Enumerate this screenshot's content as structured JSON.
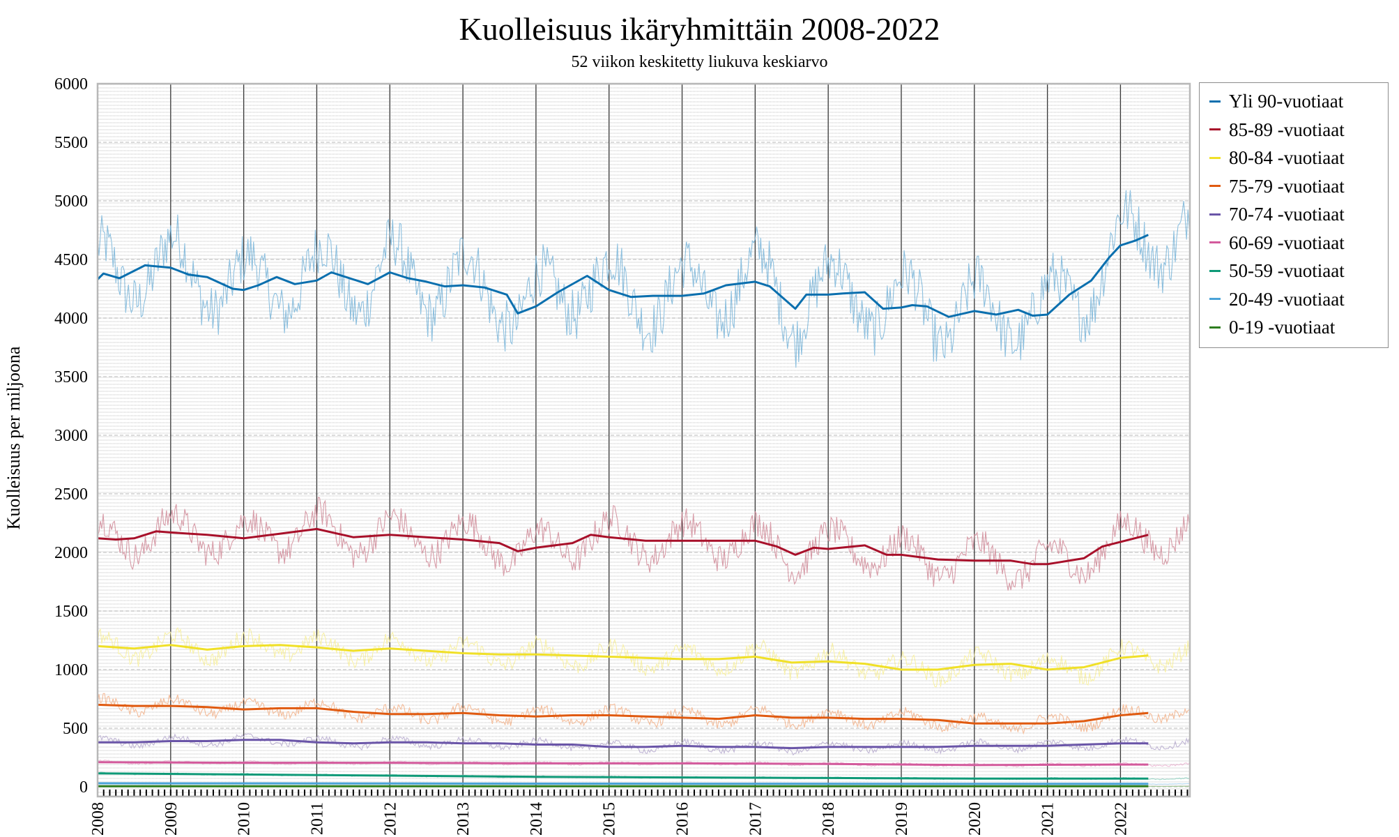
{
  "chart_data": {
    "type": "line",
    "title": "Kuolleisuus ikäryhmittäin 2008-2022",
    "subtitle": "52 viikon keskitetty liukuva keskiarvo",
    "ylabel": "Kuolleisuus per miljoona",
    "xlabel": "",
    "ylim": [
      0,
      6000
    ],
    "xlim": [
      2008.0,
      2022.95
    ],
    "yticks": [
      0,
      500,
      1000,
      1500,
      2000,
      2500,
      3000,
      3500,
      4000,
      4500,
      5000,
      5500,
      6000
    ],
    "xticks": [
      "2008",
      "2009",
      "2010",
      "2011",
      "2012",
      "2013",
      "2014",
      "2015",
      "2016",
      "2017",
      "2018",
      "2019",
      "2020",
      "2021",
      "2022"
    ],
    "grid": true,
    "legend_position": "right-outside-top",
    "series": [
      {
        "name": "Yli 90-vuotiaat",
        "color": "#0a6fae",
        "raw_color": "#78b4d8",
        "raw_amp": 380,
        "x": [
          2008.0,
          2008.08,
          2008.3,
          2008.65,
          2009.0,
          2009.25,
          2009.5,
          2009.85,
          2010.0,
          2010.2,
          2010.45,
          2010.7,
          2011.0,
          2011.2,
          2011.45,
          2011.7,
          2012.0,
          2012.25,
          2012.5,
          2012.75,
          2013.0,
          2013.3,
          2013.6,
          2013.75,
          2014.0,
          2014.3,
          2014.7,
          2015.0,
          2015.3,
          2015.6,
          2016.0,
          2016.3,
          2016.6,
          2017.0,
          2017.2,
          2017.55,
          2017.7,
          2018.0,
          2018.2,
          2018.5,
          2018.75,
          2019.0,
          2019.15,
          2019.35,
          2019.65,
          2020.0,
          2020.3,
          2020.6,
          2020.8,
          2021.0,
          2021.3,
          2021.6,
          2021.85,
          2022.0,
          2022.2,
          2022.38
        ],
        "y": [
          4330,
          4380,
          4340,
          4450,
          4430,
          4370,
          4350,
          4250,
          4240,
          4280,
          4350,
          4290,
          4320,
          4390,
          4340,
          4290,
          4390,
          4340,
          4310,
          4270,
          4280,
          4260,
          4200,
          4040,
          4100,
          4220,
          4360,
          4240,
          4180,
          4190,
          4190,
          4210,
          4280,
          4310,
          4270,
          4080,
          4200,
          4200,
          4210,
          4220,
          4080,
          4090,
          4110,
          4100,
          4010,
          4060,
          4030,
          4070,
          4020,
          4030,
          4200,
          4320,
          4520,
          4620,
          4660,
          4710
        ]
      },
      {
        "name": "85-89 -vuotiaat",
        "color": "#a8102a",
        "raw_color": "#d08a98",
        "raw_amp": 210,
        "x": [
          2008.0,
          2008.25,
          2008.5,
          2008.8,
          2009.0,
          2009.5,
          2010.0,
          2010.5,
          2011.0,
          2011.5,
          2012.0,
          2012.5,
          2013.0,
          2013.5,
          2013.75,
          2014.0,
          2014.5,
          2014.75,
          2015.0,
          2015.5,
          2016.0,
          2016.5,
          2017.0,
          2017.3,
          2017.55,
          2017.8,
          2018.0,
          2018.5,
          2018.8,
          2019.0,
          2019.5,
          2020.0,
          2020.5,
          2020.8,
          2021.0,
          2021.5,
          2021.75,
          2022.0,
          2022.38
        ],
        "y": [
          2120,
          2110,
          2120,
          2180,
          2170,
          2150,
          2120,
          2160,
          2200,
          2130,
          2150,
          2130,
          2110,
          2080,
          2010,
          2040,
          2080,
          2150,
          2130,
          2100,
          2100,
          2100,
          2100,
          2050,
          1980,
          2040,
          2030,
          2060,
          1980,
          1980,
          1940,
          1930,
          1930,
          1900,
          1900,
          1950,
          2050,
          2090,
          2150
        ]
      },
      {
        "name": "80-84 -vuotiaat",
        "color": "#f0e028",
        "raw_color": "#f7ef9a",
        "raw_amp": 120,
        "x": [
          2008.0,
          2008.5,
          2009.0,
          2009.5,
          2010.0,
          2010.5,
          2011.0,
          2011.5,
          2012.0,
          2012.5,
          2013.0,
          2013.5,
          2014.0,
          2014.5,
          2015.0,
          2015.5,
          2016.0,
          2016.5,
          2017.0,
          2017.5,
          2018.0,
          2018.5,
          2019.0,
          2019.5,
          2020.0,
          2020.5,
          2021.0,
          2021.5,
          2021.75,
          2022.0,
          2022.38
        ],
        "y": [
          1200,
          1180,
          1210,
          1170,
          1200,
          1210,
          1190,
          1160,
          1180,
          1160,
          1140,
          1130,
          1130,
          1120,
          1110,
          1100,
          1090,
          1090,
          1110,
          1060,
          1070,
          1050,
          1000,
          1000,
          1040,
          1050,
          1000,
          1020,
          1060,
          1100,
          1120
        ]
      },
      {
        "name": "75-79 -vuotiaat",
        "color": "#e05a10",
        "raw_color": "#f2b28a",
        "raw_amp": 75,
        "x": [
          2008.0,
          2008.5,
          2009.0,
          2009.5,
          2010.0,
          2010.5,
          2011.0,
          2011.5,
          2012.0,
          2012.5,
          2013.0,
          2013.5,
          2014.0,
          2014.5,
          2015.0,
          2015.5,
          2016.0,
          2016.5,
          2017.0,
          2017.5,
          2018.0,
          2018.5,
          2019.0,
          2019.5,
          2020.0,
          2020.5,
          2021.0,
          2021.5,
          2022.0,
          2022.38
        ],
        "y": [
          700,
          690,
          690,
          680,
          660,
          670,
          670,
          640,
          620,
          620,
          630,
          610,
          600,
          610,
          610,
          600,
          590,
          580,
          610,
          590,
          590,
          580,
          580,
          570,
          540,
          540,
          540,
          560,
          610,
          630
        ]
      },
      {
        "name": "70-74 -vuotiaat",
        "color": "#6a55a8",
        "raw_color": "#b7accf",
        "raw_amp": 45,
        "x": [
          2008.0,
          2008.5,
          2009.0,
          2009.5,
          2010.0,
          2010.5,
          2011.0,
          2011.5,
          2012.0,
          2012.5,
          2013.0,
          2013.5,
          2014.0,
          2014.5,
          2015.0,
          2015.5,
          2016.0,
          2016.5,
          2017.0,
          2017.5,
          2018.0,
          2018.5,
          2019.0,
          2019.5,
          2020.0,
          2020.5,
          2021.0,
          2021.5,
          2022.0,
          2022.38
        ],
        "y": [
          380,
          380,
          390,
          390,
          400,
          400,
          380,
          370,
          380,
          380,
          370,
          370,
          360,
          360,
          340,
          340,
          350,
          340,
          340,
          330,
          340,
          340,
          340,
          340,
          350,
          350,
          350,
          360,
          370,
          370
        ]
      },
      {
        "name": "60-69 -vuotiaat",
        "color": "#d35a9c",
        "raw_color": "#eab2d0",
        "raw_amp": 14,
        "x": [
          2008.0,
          2010.0,
          2012.0,
          2014.0,
          2016.0,
          2018.0,
          2020.0,
          2022.0,
          2022.38
        ],
        "y": [
          210,
          205,
          205,
          200,
          200,
          195,
          185,
          190,
          190
        ]
      },
      {
        "name": "50-59 -vuotiaat",
        "color": "#0f9a78",
        "raw_color": "#8fd3c2",
        "raw_amp": 8,
        "x": [
          2008.0,
          2010.0,
          2012.0,
          2014.0,
          2016.0,
          2018.0,
          2020.0,
          2022.0,
          2022.38
        ],
        "y": [
          115,
          105,
          95,
          85,
          80,
          75,
          70,
          70,
          70
        ]
      },
      {
        "name": "20-49 -vuotiaat",
        "color": "#4aa3d8",
        "raw_color": "#a9d2ee",
        "raw_amp": 3,
        "x": [
          2008.0,
          2012.0,
          2016.0,
          2020.0,
          2022.38
        ],
        "y": [
          30,
          28,
          26,
          25,
          25
        ]
      },
      {
        "name": "0-19 -vuotiaat",
        "color": "#2e7d1f",
        "raw_color": "#96c28a",
        "raw_amp": 1,
        "x": [
          2008.0,
          2015.0,
          2022.38
        ],
        "y": [
          5,
          4,
          4
        ]
      }
    ]
  }
}
